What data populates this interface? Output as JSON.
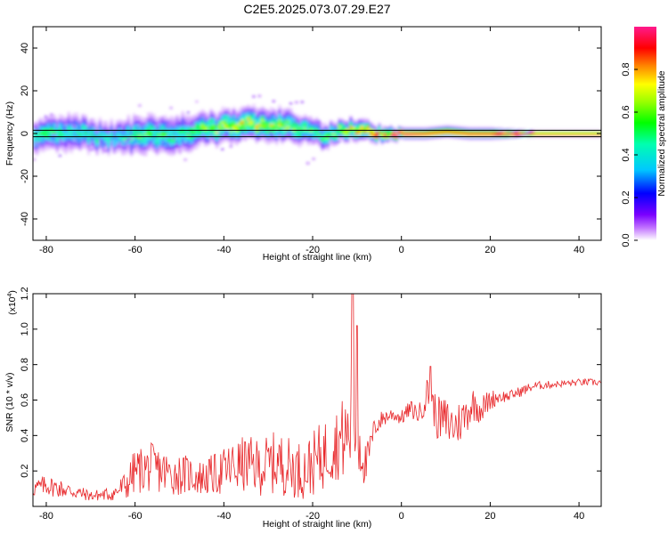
{
  "title": "C2E5.2025.073.07.29.E27",
  "chart_data": [
    {
      "type": "heatmap",
      "xlabel": "Height of straight line (km)",
      "ylabel": "Frequency (Hz)",
      "xlim": [
        -83,
        45
      ],
      "ylim": [
        -50,
        50
      ],
      "x_ticks": [
        -80,
        -60,
        -40,
        -20,
        0,
        20,
        40
      ],
      "y_ticks": [
        -40,
        -20,
        0,
        20,
        40
      ],
      "colorbar": {
        "label": "Normalized spectral amplitude",
        "ticks": [
          "0.0",
          "0.2",
          "0.4",
          "0.6",
          "0.8"
        ],
        "tick_values": [
          0.0,
          0.2,
          0.4,
          0.6,
          0.8
        ],
        "range": [
          0,
          1
        ],
        "colormap": "rainbow"
      },
      "reference_lines_hz": [
        -1.5,
        1.5
      ],
      "ridge": {
        "x": [
          -83,
          -80,
          -75,
          -70,
          -65,
          -60,
          -55,
          -50,
          -45,
          -40,
          -35,
          -30,
          -26,
          -22,
          -18,
          -14,
          -10,
          -5,
          0,
          5,
          10,
          15,
          20,
          25,
          30,
          45
        ],
        "freq": [
          -2,
          0,
          1,
          -1,
          -2,
          -1,
          0,
          0,
          2,
          3,
          5,
          3,
          4,
          2,
          -1,
          1,
          2,
          0,
          0,
          0,
          1,
          0,
          0,
          0,
          0,
          0
        ],
        "amplitude": [
          0.45,
          0.5,
          0.4,
          0.45,
          0.35,
          0.5,
          0.5,
          0.45,
          0.55,
          0.6,
          0.65,
          0.6,
          0.6,
          0.55,
          0.45,
          0.6,
          0.75,
          0.9,
          1.0,
          0.95,
          0.9,
          0.95,
          0.95,
          1.0,
          1.0,
          1.0
        ],
        "spread_hz": [
          6,
          6,
          7,
          6,
          6,
          7,
          7,
          7,
          6,
          6,
          6,
          6,
          6,
          5,
          5,
          4,
          4,
          3,
          2,
          2,
          2,
          2,
          2,
          1.5,
          1,
          1
        ]
      }
    },
    {
      "type": "line",
      "xlabel": "Height of straight line (km)",
      "ylabel": "SNR (10 * v/v)",
      "y_multiplier_label": "(x10",
      "y_multiplier_exp": "4",
      "xlim": [
        -83,
        45
      ],
      "ylim": [
        0,
        1.2
      ],
      "x_ticks": [
        -80,
        -60,
        -40,
        -20,
        0,
        20,
        40
      ],
      "y_ticks": [
        0.2,
        0.4,
        0.6,
        0.8,
        1.0,
        1.2
      ],
      "series": [
        {
          "color": "#e8282b",
          "x": [
            -83,
            -80,
            -75,
            -70,
            -65,
            -62,
            -60,
            -56,
            -52,
            -48,
            -45,
            -42,
            -38,
            -35,
            -32,
            -28,
            -25,
            -22,
            -18,
            -15,
            -12,
            -11,
            -10,
            -8,
            -6,
            -4,
            -2,
            0,
            2,
            4,
            6,
            7,
            8,
            10,
            12,
            14,
            16,
            18,
            20,
            22,
            24,
            26,
            28,
            30,
            35,
            40,
            45
          ],
          "mean": [
            0.1,
            0.12,
            0.09,
            0.06,
            0.07,
            0.12,
            0.2,
            0.22,
            0.18,
            0.18,
            0.16,
            0.18,
            0.22,
            0.24,
            0.22,
            0.25,
            0.22,
            0.2,
            0.28,
            0.35,
            0.4,
            0.45,
            0.42,
            0.22,
            0.45,
            0.5,
            0.52,
            0.5,
            0.55,
            0.52,
            0.65,
            0.58,
            0.5,
            0.48,
            0.45,
            0.5,
            0.58,
            0.55,
            0.6,
            0.62,
            0.62,
            0.64,
            0.66,
            0.68,
            0.69,
            0.7,
            0.7
          ],
          "noise": [
            0.05,
            0.06,
            0.05,
            0.03,
            0.04,
            0.09,
            0.13,
            0.14,
            0.12,
            0.11,
            0.1,
            0.12,
            0.15,
            0.16,
            0.16,
            0.18,
            0.17,
            0.16,
            0.2,
            0.2,
            0.26,
            0.3,
            0.25,
            0.12,
            0.06,
            0.05,
            0.04,
            0.04,
            0.05,
            0.06,
            0.1,
            0.1,
            0.12,
            0.14,
            0.13,
            0.12,
            0.1,
            0.08,
            0.06,
            0.04,
            0.03,
            0.03,
            0.03,
            0.025,
            0.02,
            0.02,
            0.02
          ],
          "spikes": [
            [
              -11,
              1.2
            ],
            [
              -10,
              1.02
            ],
            [
              6.5,
              0.79
            ]
          ]
        }
      ]
    }
  ]
}
